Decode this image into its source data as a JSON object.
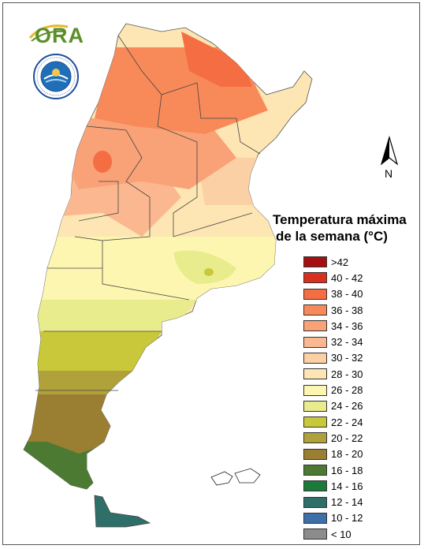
{
  "logo": {
    "text": "ORA"
  },
  "seal": {
    "text": "SERVICIO METEOROLÓGICO NACIONAL ARGENTINA"
  },
  "north_arrow": {
    "label": "N"
  },
  "legend": {
    "title_line1": "Temperatura máxima",
    "title_line2": "de la semana (°C)",
    "items": [
      {
        "label": ">42",
        "color": "#a50f0f"
      },
      {
        "label": "40 - 42",
        "color": "#d7301f"
      },
      {
        "label": "38 - 40",
        "color": "#f46d43"
      },
      {
        "label": "36 - 38",
        "color": "#f88a5a"
      },
      {
        "label": "34 - 36",
        "color": "#f9a277"
      },
      {
        "label": "32 - 34",
        "color": "#fbb890"
      },
      {
        "label": "30 - 32",
        "color": "#fcd0a5"
      },
      {
        "label": "28 - 30",
        "color": "#fde6b3"
      },
      {
        "label": "26 - 28",
        "color": "#fdf6b0"
      },
      {
        "label": "24 - 26",
        "color": "#e9ec8c"
      },
      {
        "label": "22 - 24",
        "color": "#c9c83b"
      },
      {
        "label": "20 - 22",
        "color": "#b1a13a"
      },
      {
        "label": "18 - 20",
        "color": "#9a7f33"
      },
      {
        "label": "16 - 18",
        "color": "#4d7a33"
      },
      {
        "label": "14 - 16",
        "color": "#1b7a3a"
      },
      {
        "label": "12 - 14",
        "color": "#2f6f6a"
      },
      {
        "label": "10 - 12",
        "color": "#3e6fa8"
      },
      {
        "label": "< 10",
        "color": "#8c8c8c"
      }
    ]
  }
}
